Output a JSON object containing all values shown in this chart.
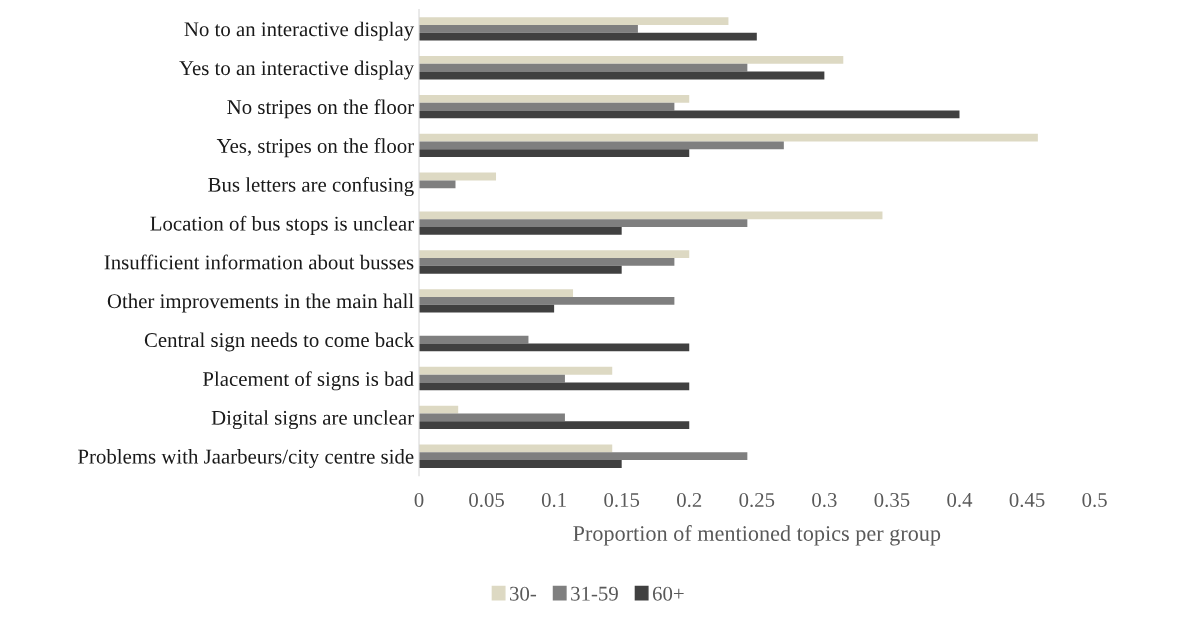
{
  "chart_data": {
    "type": "bar",
    "orientation": "horizontal",
    "xlabel": "Proportion of mentioned topics per group",
    "categories": [
      "No to an interactive display",
      "Yes to an interactive display",
      "No stripes on the floor",
      "Yes, stripes on the floor",
      "Bus letters are confusing",
      "Location of bus stops is unclear",
      "Insufficient information about busses",
      "Other improvements in the main hall",
      "Central sign needs to come back",
      "Placement of signs is bad",
      "Digital signs are unclear",
      "Problems with Jaarbeurs/city centre side"
    ],
    "series": [
      {
        "name": "30-",
        "color": "#ddd9c3",
        "values": [
          0.229,
          0.314,
          0.2,
          0.458,
          0.057,
          0.343,
          0.2,
          0.114,
          0,
          0.143,
          0.029,
          0.143
        ]
      },
      {
        "name": "31-59",
        "color": "#7f7f7f",
        "values": [
          0.162,
          0.243,
          0.189,
          0.27,
          0.027,
          0.243,
          0.189,
          0.189,
          0.081,
          0.108,
          0.108,
          0.243
        ]
      },
      {
        "name": "60+",
        "color": "#404040",
        "values": [
          0.25,
          0.3,
          0.4,
          0.2,
          0,
          0.15,
          0.15,
          0.1,
          0.2,
          0.2,
          0.2,
          0.15
        ]
      }
    ],
    "xlim": [
      0,
      0.5
    ],
    "xticks": [
      0,
      0.05,
      0.1,
      0.15,
      0.2,
      0.25,
      0.3,
      0.35,
      0.4,
      0.45,
      0.5
    ],
    "grid": false,
    "legend": "bottom"
  }
}
